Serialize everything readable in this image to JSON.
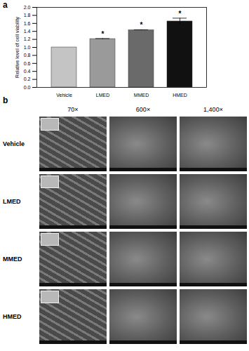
{
  "chart_data": {
    "type": "bar",
    "categories": [
      "Vehicle",
      "LMED",
      "MMED",
      "HMED"
    ],
    "values": [
      1.0,
      1.21,
      1.43,
      1.65
    ],
    "errors": [
      0,
      0.01,
      0.01,
      0.08
    ],
    "colors": [
      "#c4c4c4",
      "#9a9a9a",
      "#6a6a6a",
      "#111111"
    ],
    "ylabel": "Relative level of cell viability",
    "ylim": [
      0,
      2.0
    ],
    "yticks": [
      {
        "value": 0,
        "label": "0.0"
      },
      {
        "value": 0.2,
        "label": "0.2"
      },
      {
        "value": 0.4,
        "label": "0.4"
      },
      {
        "value": 0.6,
        "label": "0.6"
      },
      {
        "value": 0.8,
        "label": "0.8"
      },
      {
        "value": 1.0,
        "label": "1.0"
      },
      {
        "value": 1.2,
        "label": "1.2"
      },
      {
        "value": 1.4,
        "label": "1.4"
      },
      {
        "value": 1.6,
        "label": "1.6"
      },
      {
        "value": 1.8,
        "label": "1.8"
      },
      {
        "value": 2.0,
        "label": "2.0"
      }
    ],
    "annotations": [
      {
        "category": "LMED",
        "text": "*"
      },
      {
        "category": "MMED",
        "text": "*"
      },
      {
        "category": "HMED",
        "text": "*"
      }
    ]
  },
  "figure": {
    "panel_labels": [
      "a",
      "b"
    ],
    "image_grid": {
      "columns": [
        "70×",
        "600×",
        "1,400×"
      ],
      "rows": [
        "Vehicle",
        "LMED",
        "MMED",
        "HMED"
      ]
    }
  }
}
